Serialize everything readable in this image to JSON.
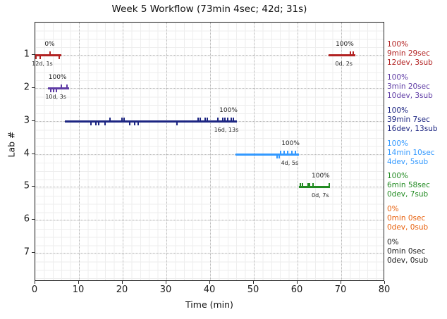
{
  "chart_data": {
    "type": "gantt-timeline",
    "title": "Week 5 Workflow (73min 4sec; 42d; 31s)",
    "xlabel": "Time (min)",
    "ylabel": "Lab #",
    "xlim": [
      0,
      80
    ],
    "xticks": [
      0,
      10,
      20,
      30,
      40,
      50,
      60,
      70,
      80
    ],
    "yticks": [
      1,
      2,
      3,
      4,
      5,
      6,
      7
    ],
    "grid": "dotted major gridlines at 10-min and integer-lab lines; faint minor grid",
    "legend_position": "right, one colored block per lab",
    "segments": [
      {
        "lab": 1,
        "color": "#b22222",
        "start": 0.0,
        "end": 5.9,
        "ticks_up": [
          3.4
        ],
        "ticks_down": [
          0.2,
          1.1,
          5.5
        ],
        "pct_label": "0%",
        "pct_x": 3.3,
        "sub_label": "12d, 1s",
        "sub_x": 1.6
      },
      {
        "lab": 1,
        "color": "#b22222",
        "start": 67.1,
        "end": 73.2,
        "ticks_up": [
          72.1,
          72.7
        ],
        "ticks_down": [],
        "pct_label": "100%",
        "pct_x": 70.8,
        "sub_label": "0d, 2s",
        "sub_x": 70.6
      },
      {
        "lab": 2,
        "color": "#5f3ca5",
        "start": 2.9,
        "end": 7.8,
        "ticks_up": [
          6.0,
          7.2
        ],
        "ticks_down": [
          3.5,
          4.2,
          4.9
        ],
        "pct_label": "100%",
        "pct_x": 5.1,
        "sub_label": "10d, 3s",
        "sub_x": 4.7
      },
      {
        "lab": 3,
        "color": "#1c2582",
        "start": 6.8,
        "end": 46.1,
        "ticks_up": [
          17.1,
          19.8,
          20.3,
          37.3,
          37.8,
          38.9,
          39.4,
          41.8,
          42.9,
          43.4,
          44.0,
          44.8,
          45.3
        ],
        "ticks_down": [
          12.8,
          13.9,
          14.5,
          16.0,
          21.6,
          22.7,
          23.5,
          32.4
        ],
        "pct_label": "100%",
        "pct_x": 44.2,
        "sub_label": "16d, 13s",
        "sub_x": 43.7
      },
      {
        "lab": 4,
        "color": "#3399ff",
        "start": 45.8,
        "end": 60.3,
        "ticks_up": [
          56.1,
          57.0,
          57.8,
          58.7,
          59.5
        ],
        "ticks_down": [
          55.4,
          55.8
        ],
        "pct_label": "100%",
        "pct_x": 58.4,
        "sub_label": "4d, 5s",
        "sub_x": 58.2
      },
      {
        "lab": 5,
        "color": "#228b22",
        "start": 60.3,
        "end": 67.4,
        "ticks_up": [
          60.6,
          61.2,
          62.4,
          62.8,
          63.5,
          67.3
        ],
        "ticks_down": [],
        "pct_label": "100%",
        "pct_x": 65.3,
        "sub_label": "0d, 7s",
        "sub_x": 65.2
      }
    ],
    "legend": [
      {
        "lab": 1,
        "color": "#b22222",
        "lines": [
          "100%",
          "9min 29sec",
          "12dev, 3sub"
        ]
      },
      {
        "lab": 2,
        "color": "#5f3ca5",
        "lines": [
          "100%",
          "3min 20sec",
          "10dev, 3sub"
        ]
      },
      {
        "lab": 3,
        "color": "#1c2582",
        "lines": [
          "100%",
          "39min 7sec",
          "16dev, 13sub"
        ]
      },
      {
        "lab": 4,
        "color": "#3399ff",
        "lines": [
          "100%",
          "14min 10sec",
          "4dev, 5sub"
        ]
      },
      {
        "lab": 5,
        "color": "#228b22",
        "lines": [
          "100%",
          "6min 58sec",
          "0dev, 7sub"
        ]
      },
      {
        "lab": 6,
        "color": "#e8610e",
        "lines": [
          "0%",
          "0min 0sec",
          "0dev, 0sub"
        ]
      },
      {
        "lab": 7,
        "color": "#1a1a1a",
        "lines": [
          "0%",
          "0min 0sec",
          "0dev, 0sub"
        ]
      }
    ]
  }
}
